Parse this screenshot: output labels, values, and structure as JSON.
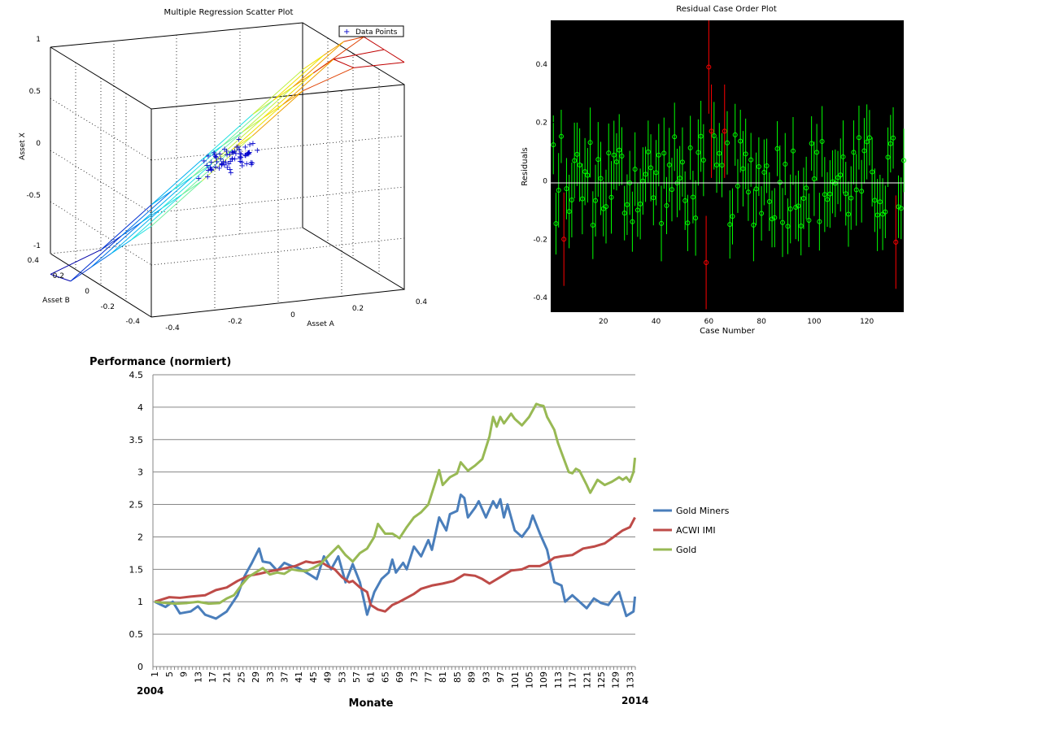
{
  "chart_data": [
    {
      "type": "scatter",
      "projection": "3d",
      "title": "Multiple Regression Scatter Plot",
      "xlabel": "Asset A",
      "ylabel": "Asset B",
      "zlabel": "Asset X",
      "legend": [
        "Data Points"
      ],
      "legend_position": "top-right",
      "xlim": [
        -0.4,
        0.4
      ],
      "ylim": [
        -0.4,
        0.4
      ],
      "zlim": [
        -1,
        1
      ],
      "x_ticks": [
        "-0.4",
        "-0.2",
        "0",
        "0.2",
        "0.4"
      ],
      "y_ticks": [
        "-0.4",
        "-0.2",
        "0",
        "0.2",
        "0.4"
      ],
      "z_ticks": [
        "-1",
        "-0.5",
        "0",
        "0.5",
        "1"
      ],
      "grid": true,
      "surface": "fitted regression plane (jet colormap)",
      "points_approx": "about 70 points clustered near A=0, B=0, X≈0"
    },
    {
      "type": "scatter",
      "title": "Residual Case Order Plot",
      "xlabel": "Case Number",
      "ylabel": "Residuals",
      "background": "#000000",
      "xlim": [
        0,
        134
      ],
      "ylim": [
        -0.45,
        0.55
      ],
      "x_ticks": [
        "20",
        "40",
        "60",
        "80",
        "100",
        "120"
      ],
      "y_ticks": [
        "-0.4",
        "-0.2",
        "0",
        "0.2",
        "0.4"
      ],
      "normal_color": "#00ff00",
      "outlier_color": "#ff0000",
      "outliers": [
        {
          "case": 5,
          "residual": -0.2
        },
        {
          "case": 59,
          "residual": -0.28
        },
        {
          "case": 60,
          "residual": 0.39
        },
        {
          "case": 61,
          "residual": 0.17
        },
        {
          "case": 66,
          "residual": 0.17
        },
        {
          "case": 131,
          "residual": -0.21
        }
      ]
    },
    {
      "type": "line",
      "title": "Performance (normiert)",
      "xlabel": "Monate",
      "x_start_label": "2004",
      "x_end_label": "2014",
      "ylim": [
        0,
        4.5
      ],
      "y_ticks": [
        "0",
        "0.5",
        "1",
        "1.5",
        "2",
        "2.5",
        "3",
        "3.5",
        "4",
        "4.5"
      ],
      "x_ticks": [
        "1",
        "5",
        "9",
        "13",
        "17",
        "21",
        "25",
        "29",
        "33",
        "37",
        "41",
        "45",
        "49",
        "53",
        "57",
        "61",
        "65",
        "69",
        "73",
        "77",
        "81",
        "85",
        "89",
        "93",
        "97",
        "101",
        "105",
        "109",
        "113",
        "117",
        "121",
        "125",
        "129",
        "133"
      ],
      "n_months": 134,
      "grid": true,
      "legend_position": "right",
      "series": [
        {
          "name": "Gold Miners",
          "color": "#4a7ebb",
          "anchors": [
            [
              1,
              1.0
            ],
            [
              4,
              0.92
            ],
            [
              6,
              1.0
            ],
            [
              8,
              0.82
            ],
            [
              11,
              0.85
            ],
            [
              13,
              0.93
            ],
            [
              15,
              0.8
            ],
            [
              18,
              0.74
            ],
            [
              21,
              0.85
            ],
            [
              24,
              1.1
            ],
            [
              26,
              1.4
            ],
            [
              28,
              1.6
            ],
            [
              30,
              1.82
            ],
            [
              31,
              1.62
            ],
            [
              33,
              1.6
            ],
            [
              35,
              1.48
            ],
            [
              37,
              1.6
            ],
            [
              39,
              1.55
            ],
            [
              41,
              1.52
            ],
            [
              44,
              1.42
            ],
            [
              46,
              1.35
            ],
            [
              48,
              1.7
            ],
            [
              50,
              1.5
            ],
            [
              52,
              1.7
            ],
            [
              54,
              1.3
            ],
            [
              56,
              1.58
            ],
            [
              58,
              1.3
            ],
            [
              60,
              0.8
            ],
            [
              62,
              1.15
            ],
            [
              64,
              1.35
            ],
            [
              66,
              1.45
            ],
            [
              67,
              1.65
            ],
            [
              68,
              1.45
            ],
            [
              70,
              1.6
            ],
            [
              71,
              1.5
            ],
            [
              73,
              1.85
            ],
            [
              75,
              1.7
            ],
            [
              77,
              1.95
            ],
            [
              78,
              1.8
            ],
            [
              80,
              2.3
            ],
            [
              82,
              2.1
            ],
            [
              83,
              2.35
            ],
            [
              85,
              2.4
            ],
            [
              86,
              2.65
            ],
            [
              87,
              2.6
            ],
            [
              88,
              2.3
            ],
            [
              90,
              2.45
            ],
            [
              91,
              2.55
            ],
            [
              93,
              2.3
            ],
            [
              95,
              2.55
            ],
            [
              96,
              2.45
            ],
            [
              97,
              2.58
            ],
            [
              98,
              2.3
            ],
            [
              99,
              2.5
            ],
            [
              101,
              2.1
            ],
            [
              103,
              2.0
            ],
            [
              105,
              2.15
            ],
            [
              106,
              2.33
            ],
            [
              108,
              2.05
            ],
            [
              110,
              1.8
            ],
            [
              112,
              1.3
            ],
            [
              114,
              1.25
            ],
            [
              115,
              1.0
            ],
            [
              117,
              1.1
            ],
            [
              119,
              1.0
            ],
            [
              121,
              0.9
            ],
            [
              123,
              1.05
            ],
            [
              125,
              0.98
            ],
            [
              127,
              0.95
            ],
            [
              129,
              1.1
            ],
            [
              130,
              1.15
            ],
            [
              132,
              0.78
            ],
            [
              134,
              0.85
            ],
            [
              135,
              1.08
            ]
          ]
        },
        {
          "name": "ACWI IMI",
          "color": "#be4b48",
          "anchors": [
            [
              1,
              1.0
            ],
            [
              5,
              1.07
            ],
            [
              8,
              1.06
            ],
            [
              11,
              1.08
            ],
            [
              15,
              1.1
            ],
            [
              18,
              1.18
            ],
            [
              21,
              1.22
            ],
            [
              24,
              1.32
            ],
            [
              27,
              1.4
            ],
            [
              30,
              1.43
            ],
            [
              33,
              1.47
            ],
            [
              36,
              1.5
            ],
            [
              40,
              1.55
            ],
            [
              43,
              1.62
            ],
            [
              45,
              1.6
            ],
            [
              47,
              1.62
            ],
            [
              49,
              1.55
            ],
            [
              51,
              1.5
            ],
            [
              53,
              1.38
            ],
            [
              55,
              1.3
            ],
            [
              56,
              1.32
            ],
            [
              58,
              1.22
            ],
            [
              60,
              1.15
            ],
            [
              61,
              0.95
            ],
            [
              63,
              0.88
            ],
            [
              65,
              0.85
            ],
            [
              67,
              0.95
            ],
            [
              69,
              1.0
            ],
            [
              71,
              1.06
            ],
            [
              73,
              1.12
            ],
            [
              75,
              1.2
            ],
            [
              78,
              1.25
            ],
            [
              81,
              1.28
            ],
            [
              84,
              1.32
            ],
            [
              87,
              1.42
            ],
            [
              90,
              1.4
            ],
            [
              92,
              1.35
            ],
            [
              94,
              1.28
            ],
            [
              97,
              1.38
            ],
            [
              100,
              1.48
            ],
            [
              103,
              1.5
            ],
            [
              105,
              1.55
            ],
            [
              108,
              1.55
            ],
            [
              110,
              1.6
            ],
            [
              112,
              1.68
            ],
            [
              114,
              1.7
            ],
            [
              117,
              1.72
            ],
            [
              120,
              1.82
            ],
            [
              123,
              1.85
            ],
            [
              126,
              1.9
            ],
            [
              129,
              2.02
            ],
            [
              131,
              2.1
            ],
            [
              133,
              2.15
            ],
            [
              135,
              2.3
            ]
          ]
        },
        {
          "name": "Gold",
          "color": "#98b954",
          "anchors": [
            [
              1,
              1.0
            ],
            [
              4,
              0.98
            ],
            [
              7,
              0.97
            ],
            [
              10,
              0.98
            ],
            [
              13,
              1.0
            ],
            [
              16,
              0.97
            ],
            [
              19,
              0.98
            ],
            [
              21,
              1.05
            ],
            [
              23,
              1.1
            ],
            [
              25,
              1.25
            ],
            [
              27,
              1.38
            ],
            [
              29,
              1.45
            ],
            [
              31,
              1.52
            ],
            [
              33,
              1.42
            ],
            [
              35,
              1.45
            ],
            [
              37,
              1.43
            ],
            [
              39,
              1.5
            ],
            [
              41,
              1.48
            ],
            [
              43,
              1.47
            ],
            [
              45,
              1.52
            ],
            [
              47,
              1.58
            ],
            [
              50,
              1.75
            ],
            [
              52,
              1.86
            ],
            [
              54,
              1.72
            ],
            [
              56,
              1.62
            ],
            [
              58,
              1.75
            ],
            [
              60,
              1.82
            ],
            [
              62,
              2.0
            ],
            [
              63,
              2.2
            ],
            [
              65,
              2.05
            ],
            [
              67,
              2.05
            ],
            [
              69,
              1.98
            ],
            [
              71,
              2.15
            ],
            [
              73,
              2.3
            ],
            [
              75,
              2.38
            ],
            [
              77,
              2.5
            ],
            [
              79,
              2.85
            ],
            [
              80,
              3.03
            ],
            [
              81,
              2.8
            ],
            [
              83,
              2.92
            ],
            [
              85,
              2.98
            ],
            [
              86,
              3.15
            ],
            [
              88,
              3.02
            ],
            [
              90,
              3.1
            ],
            [
              92,
              3.2
            ],
            [
              94,
              3.55
            ],
            [
              95,
              3.85
            ],
            [
              96,
              3.7
            ],
            [
              97,
              3.85
            ],
            [
              98,
              3.75
            ],
            [
              100,
              3.9
            ],
            [
              101,
              3.82
            ],
            [
              103,
              3.72
            ],
            [
              105,
              3.85
            ],
            [
              107,
              4.05
            ],
            [
              108,
              4.03
            ],
            [
              109,
              4.02
            ],
            [
              110,
              3.85
            ],
            [
              111,
              3.75
            ],
            [
              112,
              3.65
            ],
            [
              113,
              3.45
            ],
            [
              114,
              3.3
            ],
            [
              116,
              3.0
            ],
            [
              117,
              2.98
            ],
            [
              118,
              3.05
            ],
            [
              119,
              3.02
            ],
            [
              121,
              2.8
            ],
            [
              122,
              2.68
            ],
            [
              124,
              2.88
            ],
            [
              126,
              2.8
            ],
            [
              128,
              2.85
            ],
            [
              130,
              2.92
            ],
            [
              131,
              2.88
            ],
            [
              132,
              2.92
            ],
            [
              133,
              2.85
            ],
            [
              134,
              3.0
            ],
            [
              135,
              3.22
            ]
          ]
        }
      ]
    }
  ]
}
